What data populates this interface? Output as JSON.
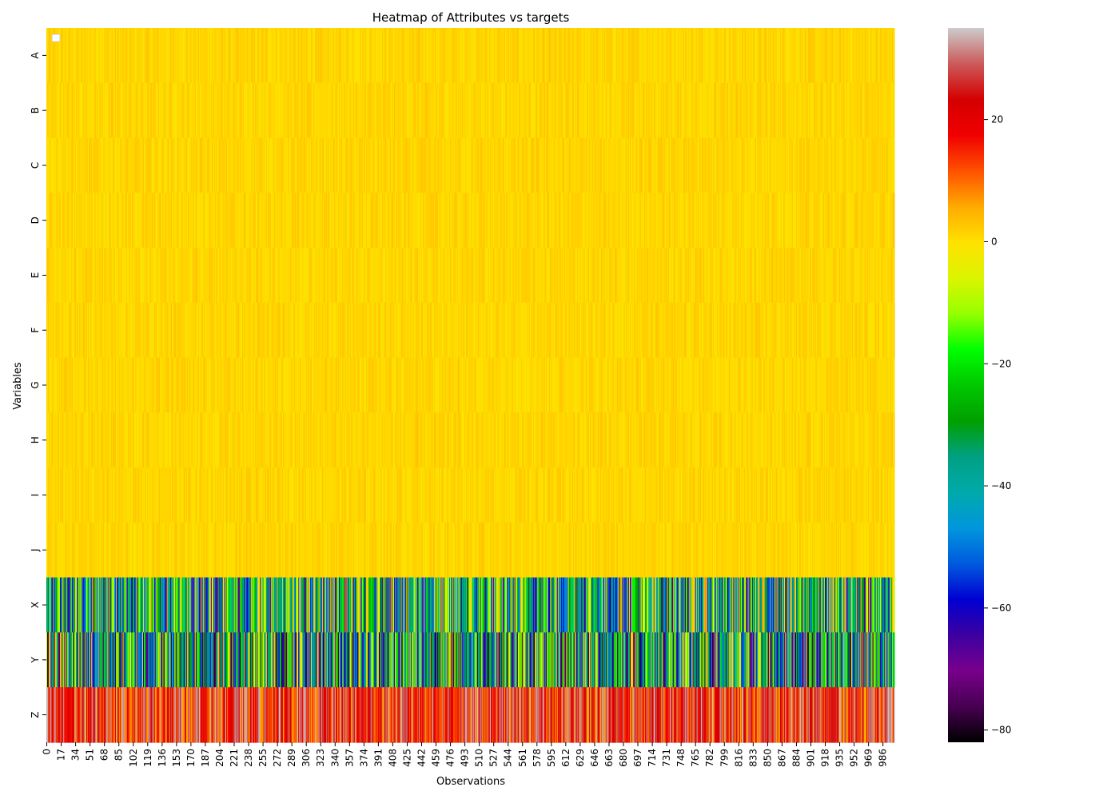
{
  "chart_data": {
    "type": "heatmap",
    "title": "Heatmap of Attributes vs targets",
    "xlabel": "Observations",
    "ylabel": "Variables",
    "rows": [
      "A",
      "B",
      "C",
      "D",
      "E",
      "F",
      "G",
      "H",
      "I",
      "J",
      "X",
      "Y",
      "Z"
    ],
    "n_observations": 1000,
    "x_tick_labels": [
      "0",
      "17",
      "34",
      "51",
      "68",
      "85",
      "102",
      "119",
      "136",
      "153",
      "170",
      "187",
      "204",
      "221",
      "238",
      "255",
      "272",
      "289",
      "306",
      "323",
      "340",
      "357",
      "374",
      "391",
      "408",
      "425",
      "442",
      "459",
      "476",
      "493",
      "510",
      "527",
      "544",
      "561",
      "578",
      "595",
      "612",
      "629",
      "646",
      "663",
      "680",
      "697",
      "714",
      "731",
      "748",
      "765",
      "782",
      "799",
      "816",
      "833",
      "850",
      "867",
      "884",
      "901",
      "918",
      "935",
      "952",
      "969",
      "986"
    ],
    "colormap": "nipy_spectral",
    "vmin": -82,
    "vmax": 35,
    "colorbar_ticks": [
      20,
      0,
      -20,
      -40,
      -60,
      -80
    ],
    "colorbar_tick_labels": [
      "20",
      "0",
      "−20",
      "−40",
      "−60",
      "−80"
    ],
    "row_value_profile": [
      {
        "row": "A",
        "min": -1,
        "max": 3
      },
      {
        "row": "B",
        "min": -1,
        "max": 3
      },
      {
        "row": "C",
        "min": -1,
        "max": 3
      },
      {
        "row": "D",
        "min": -1,
        "max": 3
      },
      {
        "row": "E",
        "min": -1,
        "max": 3
      },
      {
        "row": "F",
        "min": -1,
        "max": 3
      },
      {
        "row": "G",
        "min": -1,
        "max": 3
      },
      {
        "row": "H",
        "min": -1,
        "max": 3
      },
      {
        "row": "I",
        "min": -1,
        "max": 3
      },
      {
        "row": "J",
        "min": -1,
        "max": 3
      },
      {
        "row": "X",
        "min": -70,
        "max": 8
      },
      {
        "row": "Y",
        "min": -80,
        "max": 8
      },
      {
        "row": "Z",
        "min": 5,
        "max": 35
      }
    ],
    "legend": "top-left (empty)"
  }
}
